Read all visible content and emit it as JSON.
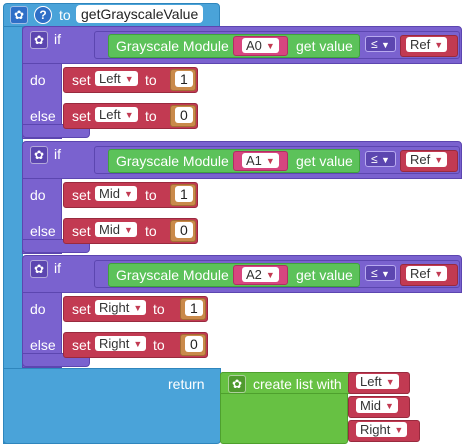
{
  "procedure": {
    "keyword": "to",
    "name": "getGrayscaleValue",
    "return_label": "return"
  },
  "branches": [
    {
      "if_label": "if",
      "sensor_label": "Grayscale Module",
      "pin": "A0",
      "value_label": "get value",
      "operator": "≤",
      "compare_var": "Ref",
      "do_label": "do",
      "else_label": "else",
      "set_label": "set",
      "to_label": "to",
      "variable": "Left",
      "do_value": "1",
      "else_value": "0"
    },
    {
      "if_label": "if",
      "sensor_label": "Grayscale Module",
      "pin": "A1",
      "value_label": "get value",
      "operator": "≤",
      "compare_var": "Ref",
      "do_label": "do",
      "else_label": "else",
      "set_label": "set",
      "to_label": "to",
      "variable": "Mid",
      "do_value": "1",
      "else_value": "0"
    },
    {
      "if_label": "if",
      "sensor_label": "Grayscale Module",
      "pin": "A2",
      "value_label": "get value",
      "operator": "≤",
      "compare_var": "Ref",
      "do_label": "do",
      "else_label": "else",
      "set_label": "set",
      "to_label": "to",
      "variable": "Right",
      "do_value": "1",
      "else_value": "0"
    }
  ],
  "list_block": {
    "label": "create list with",
    "items": [
      "Left",
      "Mid",
      "Right"
    ]
  },
  "colors": {
    "procedure": "#4aa3d9",
    "control": "#7a62cf",
    "variable": "#c23a52",
    "sensor": "#5cc25a",
    "pin": "#d7467f",
    "number": "#c98a4a",
    "list": "#67c143"
  },
  "icons": [
    "gear-icon",
    "help-icon",
    "dropdown-arrow-icon"
  ]
}
